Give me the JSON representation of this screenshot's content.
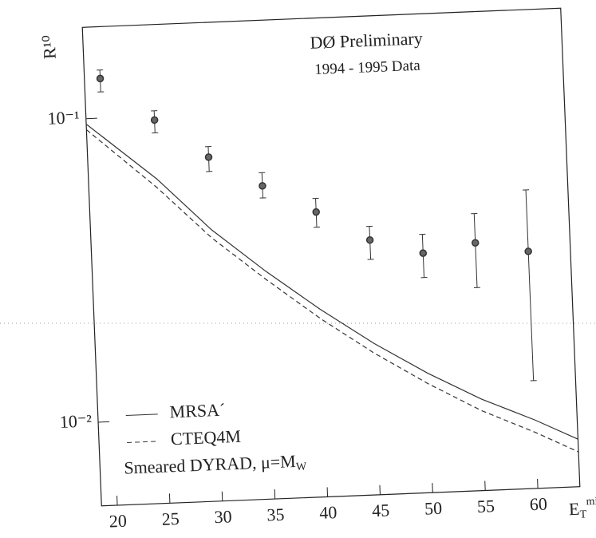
{
  "chart_data": {
    "type": "scatter",
    "annotations": [
      "DØ Preliminary",
      "1994 - 1995 Data"
    ],
    "ylabel": "R¹⁰",
    "xlabel": "E",
    "xlabel_sub": "T",
    "xlabel_sup": "min",
    "xlim": [
      18.5,
      64
    ],
    "xticks": [
      20,
      25,
      30,
      35,
      40,
      45,
      50,
      55,
      60
    ],
    "ylim": [
      0.0053,
      0.2
    ],
    "log_y": true,
    "yticks": [
      {
        "value": 0.01,
        "label": "10⁻²"
      },
      {
        "value": 0.1,
        "label": "10⁻¹"
      }
    ],
    "points": {
      "color": "#333",
      "x": [
        20,
        25,
        30,
        35,
        40,
        45,
        50,
        55,
        60
      ],
      "values": [
        0.135,
        0.097,
        0.072,
        0.057,
        0.046,
        0.0366,
        0.0326,
        0.0347,
        0.032
      ],
      "err_low": [
        0.013,
        0.009,
        0.0074,
        0.005,
        0.005,
        0.005,
        0.0055,
        0.01,
        0.02
      ],
      "err_high": [
        0.009,
        0.007,
        0.006,
        0.006,
        0.005,
        0.004,
        0.005,
        0.0086,
        0.019
      ]
    },
    "series": [
      {
        "name": "MRSA´",
        "color": "#333",
        "dashed": false,
        "x": [
          18.5,
          25,
          30,
          35,
          40,
          45,
          50,
          55,
          60,
          64
        ],
        "values": [
          0.096,
          0.062,
          0.0415,
          0.0298,
          0.022,
          0.0167,
          0.0131,
          0.0106,
          0.0089,
          0.0076
        ]
      },
      {
        "name": "CTEQ4M",
        "color": "#333",
        "dashed": true,
        "x": [
          18.5,
          25,
          30,
          35,
          40,
          45,
          50,
          55,
          60,
          64
        ],
        "values": [
          0.092,
          0.058,
          0.039,
          0.028,
          0.0205,
          0.0155,
          0.0121,
          0.0097,
          0.0081,
          0.0069
        ]
      }
    ],
    "legend_note": "Smeared DYRAD, μ=M",
    "legend_note_sub": "W"
  }
}
